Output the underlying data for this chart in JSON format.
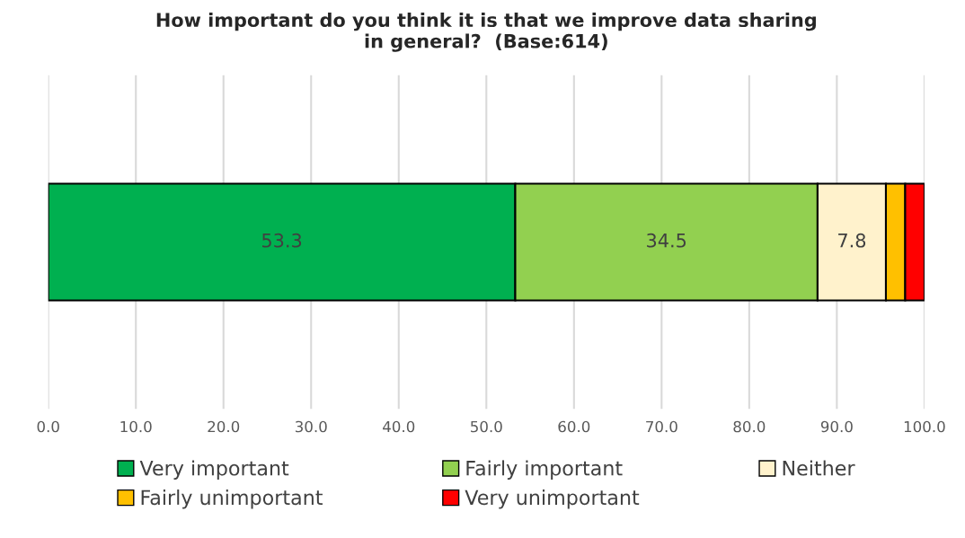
{
  "chart_data": {
    "type": "bar",
    "orientation": "horizontal",
    "stacked": true,
    "title": "How important do you think it is that we improve data sharing\nin general?  (Base:614)",
    "categories": [
      null
    ],
    "series": [
      {
        "name": "Very important",
        "color": "#00b050",
        "values": [
          53.3
        ],
        "value_labels": [
          "53.3"
        ]
      },
      {
        "name": "Fairly important",
        "color": "#92d050",
        "values": [
          34.5
        ],
        "value_labels": [
          "34.5"
        ]
      },
      {
        "name": "Neither",
        "color": "#fff2cc",
        "values": [
          7.8
        ],
        "value_labels": [
          "7.8"
        ]
      },
      {
        "name": "Fairly unimportant",
        "color": "#ffc000",
        "values": [
          2.2
        ],
        "value_labels": [
          null
        ]
      },
      {
        "name": "Very unimportant",
        "color": "#ff0000",
        "values": [
          2.2
        ],
        "value_labels": [
          null
        ]
      }
    ],
    "xlim": [
      0,
      100
    ],
    "xticks": [
      {
        "value": 0,
        "label": "0.0"
      },
      {
        "value": 10,
        "label": "10.0"
      },
      {
        "value": 20,
        "label": "20.0"
      },
      {
        "value": 30,
        "label": "30.0"
      },
      {
        "value": 40,
        "label": "40.0"
      },
      {
        "value": 50,
        "label": "50.0"
      },
      {
        "value": 60,
        "label": "60.0"
      },
      {
        "value": 70,
        "label": "70.0"
      },
      {
        "value": 80,
        "label": "80.0"
      },
      {
        "value": 90,
        "label": "90.0"
      },
      {
        "value": 100,
        "label": "100.0"
      }
    ],
    "grid": "x",
    "legend": "bottom",
    "tick_labels": "x"
  }
}
